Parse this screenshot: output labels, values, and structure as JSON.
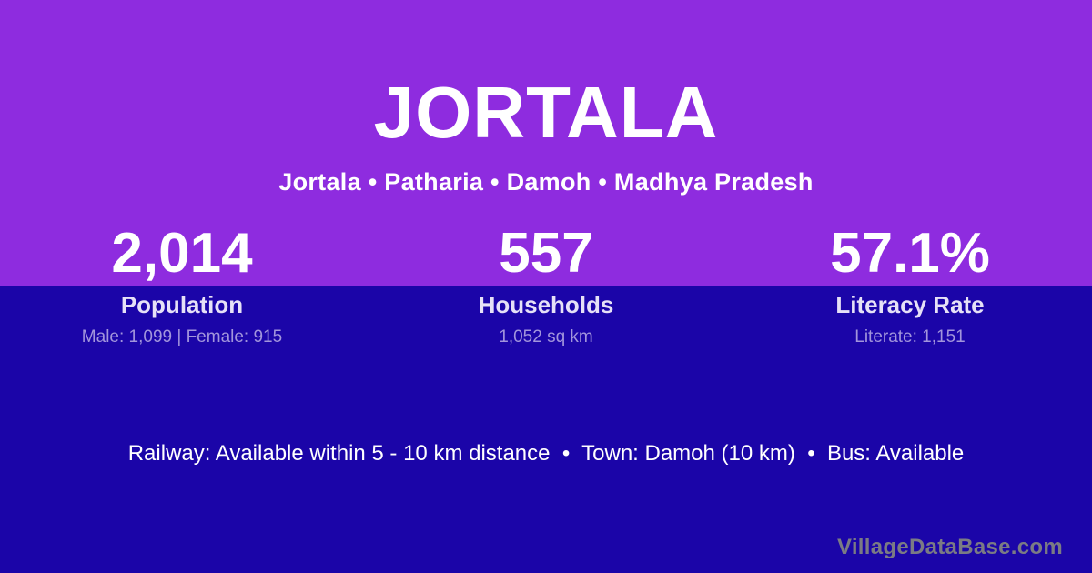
{
  "page": {
    "title": "JORTALA",
    "subtitle": "Jortala • Patharia • Damoh • Madhya Pradesh"
  },
  "stats": [
    {
      "value": "2,014",
      "label": "Population",
      "detail": "Male: 1,099 | Female: 915"
    },
    {
      "value": "557",
      "label": "Households",
      "detail": "1,052 sq km"
    },
    {
      "value": "57.1%",
      "label": "Literacy Rate",
      "detail": "Literate: 1,151"
    }
  ],
  "info_line": "Railway: Available within 5 - 10 km distance  •  Town: Damoh (10 km)  •  Bus: Available",
  "watermark": "VillageDataBase.com",
  "colors": {
    "top_background": "#8E2CDF",
    "bottom_background": "#1B05A8",
    "title_text": "#FFFFFF",
    "stat_value_text": "#FFFFFF",
    "stat_label_text": "#E6E1F7",
    "stat_detail_text": "#A295DC",
    "info_text": "#FFFFFF",
    "watermark_text": "#7B7B84"
  }
}
